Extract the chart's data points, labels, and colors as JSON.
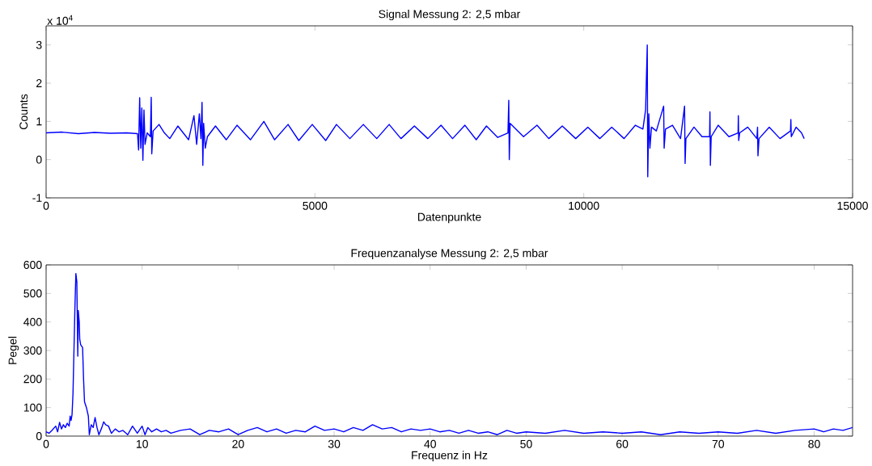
{
  "chart_data": [
    {
      "type": "line",
      "title": "Signal Messung 2: 2,5 mbar",
      "xlabel": "Datenpunkte",
      "ylabel": "Counts",
      "annotations": [
        "x 10$^{4}$"
      ],
      "color": "#0000ff",
      "x": [
        0,
        300,
        600,
        900,
        1200,
        1500,
        1700,
        1720,
        1740,
        1760,
        1780,
        1800,
        1820,
        1840,
        1880,
        1940,
        1955,
        1965,
        1990,
        2100,
        2200,
        2300,
        2450,
        2550,
        2650,
        2750,
        2800,
        2850,
        2880,
        2900,
        2915,
        2930,
        2960,
        3000,
        3150,
        3350,
        3550,
        3800,
        4050,
        4250,
        4500,
        4700,
        4950,
        5200,
        5400,
        5650,
        5900,
        6150,
        6380,
        6600,
        6850,
        7100,
        7345,
        7560,
        7790,
        8000,
        8190,
        8400,
        8590,
        8605,
        8615,
        8630,
        8880,
        9130,
        9350,
        9600,
        9850,
        10075,
        10300,
        10520,
        10750,
        10960,
        11100,
        11150,
        11181,
        11190,
        11210,
        11230,
        11260,
        11350,
        11486,
        11495,
        11520,
        11650,
        11800,
        11875,
        11885,
        11900,
        12050,
        12200,
        12340,
        12347,
        12355,
        12370,
        12500,
        12700,
        12870,
        12875,
        12882,
        12900,
        13050,
        13220,
        13232,
        13240,
        13260,
        13450,
        13650,
        13845,
        13852,
        13860,
        13950,
        14050,
        14100
      ],
      "values": [
        0.7,
        0.72,
        0.68,
        0.71,
        0.69,
        0.7,
        0.68,
        0.25,
        1.62,
        0.3,
        1.35,
        -0.02,
        1.3,
        0.4,
        0.7,
        0.6,
        1.63,
        0.15,
        0.75,
        0.92,
        0.7,
        0.55,
        0.88,
        0.7,
        0.52,
        1.15,
        0.4,
        1.2,
        0.55,
        1.5,
        -0.15,
        0.95,
        0.3,
        0.6,
        0.88,
        0.52,
        0.9,
        0.52,
        1.0,
        0.52,
        0.92,
        0.5,
        0.92,
        0.5,
        0.92,
        0.55,
        0.92,
        0.55,
        0.92,
        0.55,
        0.88,
        0.55,
        0.9,
        0.55,
        0.9,
        0.52,
        0.88,
        0.58,
        0.7,
        1.55,
        0.0,
        0.95,
        0.6,
        0.9,
        0.55,
        0.88,
        0.55,
        0.85,
        0.55,
        0.85,
        0.55,
        0.9,
        0.8,
        1.3,
        3.0,
        -0.45,
        1.2,
        0.3,
        0.85,
        0.75,
        1.4,
        0.3,
        0.8,
        0.9,
        0.55,
        1.4,
        -0.1,
        0.55,
        0.85,
        0.6,
        0.6,
        1.25,
        -0.15,
        0.6,
        0.9,
        0.6,
        0.7,
        1.15,
        0.5,
        0.7,
        0.85,
        0.55,
        0.85,
        0.1,
        0.55,
        0.85,
        0.55,
        0.75,
        1.05,
        0.6,
        0.85,
        0.7,
        0.55
      ],
      "xlim": [
        0,
        15000
      ],
      "ylim": [
        -1,
        3.5
      ],
      "xticks": [
        0,
        5000,
        10000,
        15000
      ],
      "yticks": [
        -1,
        0,
        1,
        2,
        3
      ]
    },
    {
      "type": "line",
      "title": "Frequenzanalyse Messung 2: 2,5 mbar",
      "xlabel": "Frequenz in Hz",
      "ylabel": "Pegel",
      "color": "#0000ff",
      "x": [
        0,
        0.3,
        0.6,
        1,
        1.2,
        1.4,
        1.6,
        1.8,
        2,
        2.2,
        2.4,
        2.5,
        2.6,
        2.7,
        2.8,
        2.9,
        3.0,
        3.1,
        3.2,
        3.3,
        3.35,
        3.45,
        3.5,
        3.6,
        3.8,
        3.9,
        4.0,
        4.2,
        4.4,
        4.5,
        4.7,
        4.9,
        5.1,
        5.3,
        5.5,
        5.8,
        6,
        6.2,
        6.5,
        6.8,
        7.2,
        7.6,
        8,
        8.5,
        9,
        9.5,
        10,
        10.3,
        10.6,
        11,
        11.5,
        12,
        12.5,
        13,
        14,
        15,
        16,
        17,
        18,
        19,
        20,
        21,
        22,
        23,
        24,
        25,
        26,
        27,
        28,
        29,
        30,
        31,
        32,
        33,
        34,
        35,
        36,
        37,
        38,
        39,
        40,
        41,
        42,
        43,
        44,
        45,
        46,
        47,
        48,
        49,
        50,
        52,
        54,
        56,
        58,
        60,
        62,
        64,
        66,
        68,
        70,
        72,
        74,
        76,
        78,
        80,
        81,
        82,
        83,
        84
      ],
      "values": [
        15,
        10,
        20,
        35,
        15,
        48,
        25,
        40,
        30,
        45,
        35,
        70,
        55,
        75,
        150,
        300,
        450,
        570,
        540,
        280,
        440,
        400,
        340,
        320,
        310,
        200,
        120,
        100,
        70,
        5,
        40,
        30,
        65,
        30,
        5,
        30,
        50,
        40,
        35,
        10,
        25,
        15,
        20,
        5,
        35,
        10,
        35,
        5,
        30,
        15,
        25,
        15,
        20,
        10,
        20,
        25,
        5,
        20,
        15,
        25,
        5,
        20,
        30,
        15,
        25,
        10,
        20,
        15,
        35,
        20,
        25,
        15,
        30,
        20,
        40,
        25,
        30,
        15,
        25,
        20,
        25,
        15,
        20,
        10,
        20,
        10,
        15,
        5,
        20,
        10,
        15,
        10,
        20,
        10,
        15,
        10,
        15,
        5,
        15,
        10,
        15,
        10,
        20,
        10,
        20,
        25,
        15,
        25,
        20,
        30
      ],
      "xlim": [
        0,
        84
      ],
      "ylim": [
        0,
        600
      ],
      "xticks": [
        0,
        10,
        20,
        30,
        40,
        50,
        60,
        70,
        80
      ],
      "yticks": [
        0,
        100,
        200,
        300,
        400,
        500,
        600
      ]
    }
  ]
}
